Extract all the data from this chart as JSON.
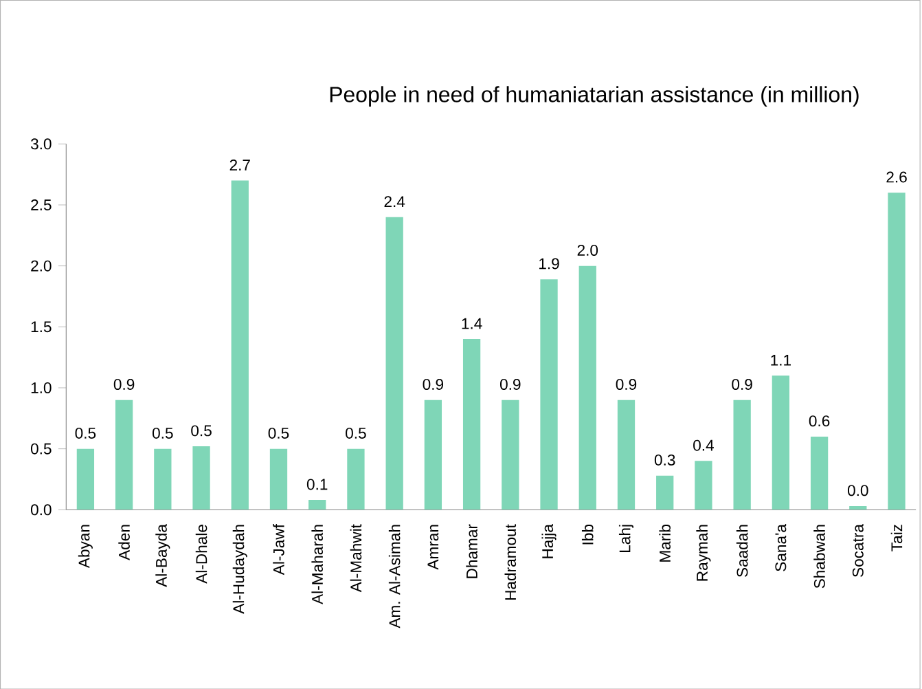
{
  "chart_data": {
    "type": "bar",
    "title": "People in need of humaniatarian assistance (in million)",
    "categories": [
      "Abyan",
      "Aden",
      "Al-Bayda",
      "Al-Dhale",
      "Al-Hudaydah",
      "Al-Jawf",
      "Al-Maharah",
      "Al-Mahwit",
      "Am. Al-Asimah",
      "Amran",
      "Dhamar",
      "Hadramout",
      "Hajja",
      "Ibb",
      "Lahj",
      "Marib",
      "Raymah",
      "Saadah",
      "Sana'a",
      "Shabwah",
      "Socatra",
      "Taiz"
    ],
    "values": [
      0.5,
      0.9,
      0.5,
      0.52,
      2.7,
      0.5,
      0.08,
      0.5,
      2.4,
      0.9,
      1.4,
      0.9,
      1.89,
      2.0,
      0.9,
      0.28,
      0.4,
      0.9,
      1.1,
      0.6,
      0.03,
      2.6
    ],
    "value_labels": [
      "0.5",
      "0.9",
      "0.5",
      "0.5",
      "2.7",
      "0.5",
      "0.1",
      "0.5",
      "2.4",
      "0.9",
      "1.4",
      "0.9",
      "1.9",
      "2.0",
      "0.9",
      "0.3",
      "0.4",
      "0.9",
      "1.1",
      "0.6",
      "0.0",
      "2.6"
    ],
    "color": "#7fd6b7",
    "ylim": [
      0,
      3
    ],
    "yticks": [
      "0.0",
      "0.5",
      "1.0",
      "1.5",
      "2.0",
      "2.5",
      "3.0"
    ],
    "grid": false
  }
}
